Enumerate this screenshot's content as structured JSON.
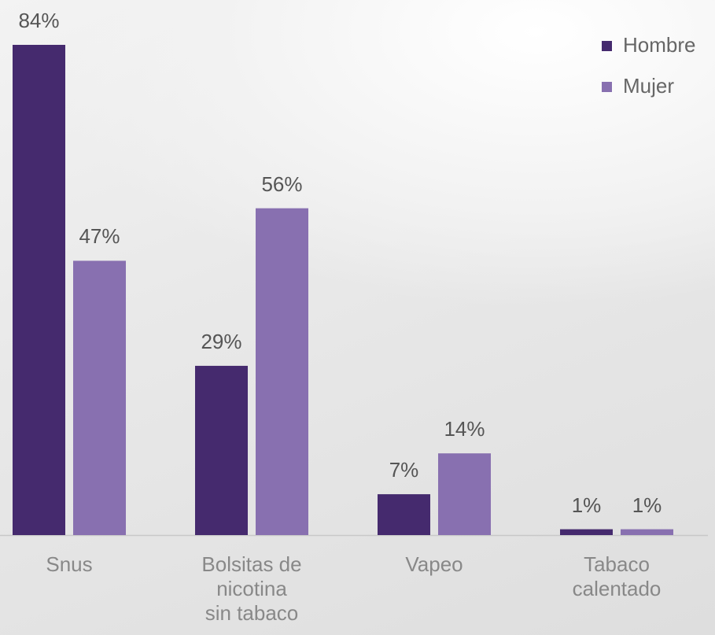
{
  "chart_data": {
    "type": "bar",
    "categories": [
      "Snus",
      "Bolsitas de\nnicotina\nsin tabaco",
      "Vapeo",
      "Tabaco\ncalentado"
    ],
    "series": [
      {
        "name": "Hombre",
        "color": "#452a6e",
        "values": [
          84,
          29,
          7,
          1
        ],
        "value_labels": [
          "84%",
          "29%",
          "7%",
          "1%"
        ]
      },
      {
        "name": "Mujer",
        "color": "#8870b0",
        "values": [
          47,
          56,
          14,
          1
        ],
        "value_labels": [
          "47%",
          "56%",
          "14%",
          "1%"
        ]
      }
    ],
    "legend": "top-right"
  }
}
